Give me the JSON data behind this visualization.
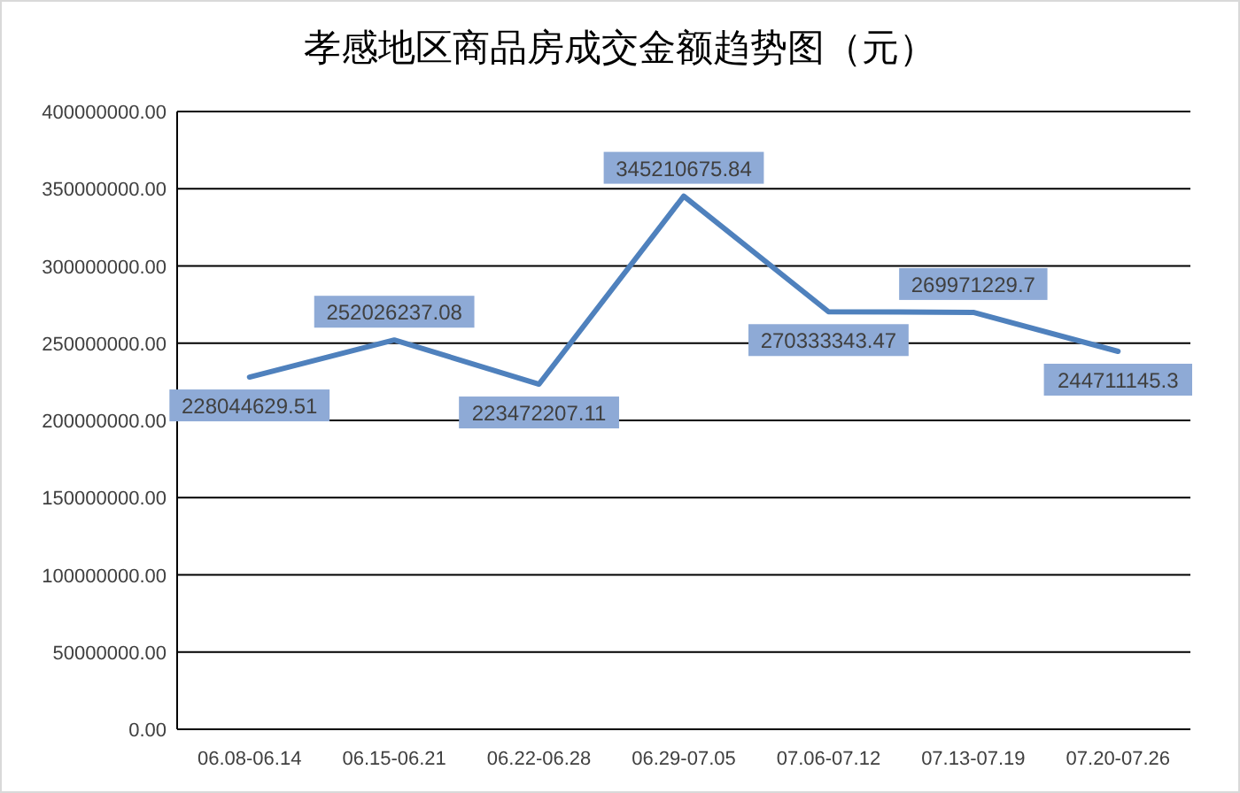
{
  "chart_data": {
    "type": "line",
    "title": "孝感地区商品房成交金额趋势图（元）",
    "categories": [
      "06.08-06.14",
      "06.15-06.21",
      "06.22-06.28",
      "06.29-07.05",
      "07.06-07.12",
      "07.13-07.19",
      "07.20-07.26"
    ],
    "series": [
      {
        "color": "#4f81bd",
        "values": [
          228044629.51,
          252026237.08,
          223472207.11,
          345210675.84,
          270333343.47,
          269971229.7,
          244711145.3
        ]
      }
    ],
    "ylim": [
      0,
      400000000
    ],
    "yticks": [
      {
        "value": 0,
        "label": "0.00"
      },
      {
        "value": 50000000,
        "label": "50000000.00"
      },
      {
        "value": 100000000,
        "label": "100000000.00"
      },
      {
        "value": 150000000,
        "label": "150000000.00"
      },
      {
        "value": 200000000,
        "label": "200000000.00"
      },
      {
        "value": 250000000,
        "label": "250000000.00"
      },
      {
        "value": 300000000,
        "label": "300000000.00"
      },
      {
        "value": 350000000,
        "label": "350000000.00"
      },
      {
        "value": 400000000,
        "label": "400000000.00"
      }
    ],
    "grid": "y",
    "data_labels": true,
    "marker": "none",
    "line_style": "solid"
  }
}
